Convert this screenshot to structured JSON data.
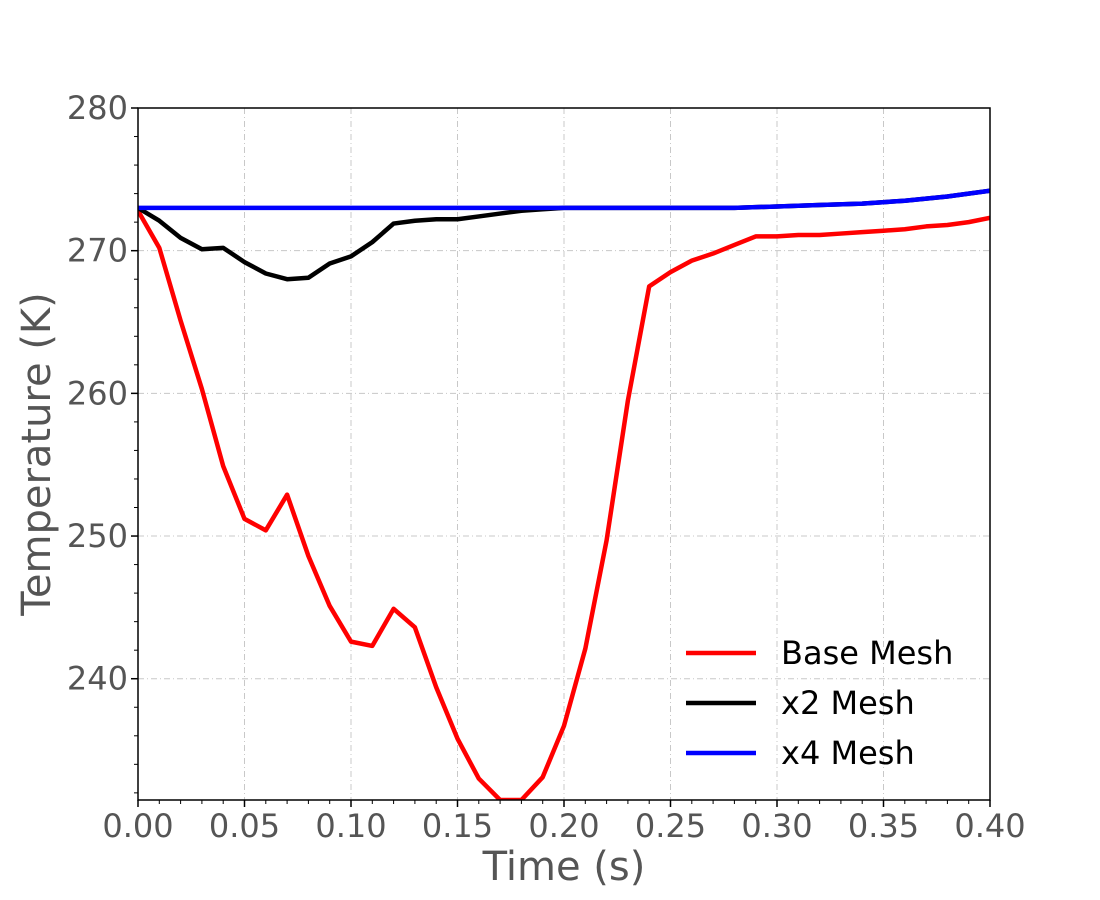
{
  "chart_data": {
    "type": "line",
    "title": "",
    "xlabel": "Time (s)",
    "ylabel": "Temperature (K)",
    "xlim": [
      0.0,
      0.4
    ],
    "ylim": [
      231.5,
      280
    ],
    "xticks": [
      0.0,
      0.05,
      0.1,
      0.15,
      0.2,
      0.25,
      0.3,
      0.35,
      0.4
    ],
    "xtick_labels": [
      "0.00",
      "0.05",
      "0.10",
      "0.15",
      "0.20",
      "0.25",
      "0.30",
      "0.35",
      "0.40"
    ],
    "yticks": [
      240,
      250,
      260,
      270,
      280
    ],
    "ytick_labels": [
      "240",
      "250",
      "260",
      "270",
      "280"
    ],
    "grid": true,
    "legend_position": "lower-right",
    "series": [
      {
        "name": "Base Mesh",
        "color": "#ff0000",
        "x": [
          0.0,
          0.01,
          0.02,
          0.03,
          0.04,
          0.05,
          0.06,
          0.07,
          0.08,
          0.09,
          0.1,
          0.11,
          0.12,
          0.13,
          0.14,
          0.15,
          0.16,
          0.17,
          0.18,
          0.19,
          0.2,
          0.21,
          0.22,
          0.23,
          0.24,
          0.25,
          0.26,
          0.27,
          0.28,
          0.29,
          0.3,
          0.31,
          0.32,
          0.33,
          0.34,
          0.35,
          0.36,
          0.37,
          0.38,
          0.39,
          0.4
        ],
        "y": [
          272.8,
          270.2,
          265.1,
          260.3,
          254.9,
          251.2,
          250.4,
          252.9,
          248.6,
          245.1,
          242.6,
          242.3,
          244.9,
          243.6,
          239.4,
          235.8,
          233.0,
          231.5,
          231.5,
          233.1,
          236.7,
          242.1,
          249.7,
          259.5,
          267.5,
          268.5,
          269.3,
          269.8,
          270.4,
          271.0,
          271.0,
          271.1,
          271.1,
          271.2,
          271.3,
          271.4,
          271.5,
          271.7,
          271.8,
          272.0,
          272.3
        ]
      },
      {
        "name": "x2 Mesh",
        "color": "#000000",
        "x": [
          0.0,
          0.01,
          0.02,
          0.03,
          0.04,
          0.05,
          0.06,
          0.07,
          0.08,
          0.09,
          0.1,
          0.11,
          0.12,
          0.13,
          0.14,
          0.15,
          0.16,
          0.17,
          0.18,
          0.19,
          0.2,
          0.22,
          0.25,
          0.28,
          0.3,
          0.32,
          0.34,
          0.36,
          0.38,
          0.4
        ],
        "y": [
          273.0,
          272.1,
          270.9,
          270.1,
          270.2,
          269.2,
          268.4,
          268.0,
          268.1,
          269.1,
          269.6,
          270.6,
          271.9,
          272.1,
          272.2,
          272.2,
          272.4,
          272.6,
          272.8,
          272.9,
          273.0,
          273.0,
          273.0,
          273.0,
          273.1,
          273.2,
          273.3,
          273.5,
          273.8,
          274.2
        ]
      },
      {
        "name": "x4 Mesh",
        "color": "#0000ff",
        "x": [
          0.0,
          0.05,
          0.1,
          0.15,
          0.2,
          0.25,
          0.28,
          0.3,
          0.32,
          0.34,
          0.36,
          0.38,
          0.4
        ],
        "y": [
          273.0,
          273.0,
          273.0,
          273.0,
          273.0,
          273.0,
          273.0,
          273.1,
          273.2,
          273.3,
          273.5,
          273.8,
          274.2
        ]
      }
    ]
  }
}
